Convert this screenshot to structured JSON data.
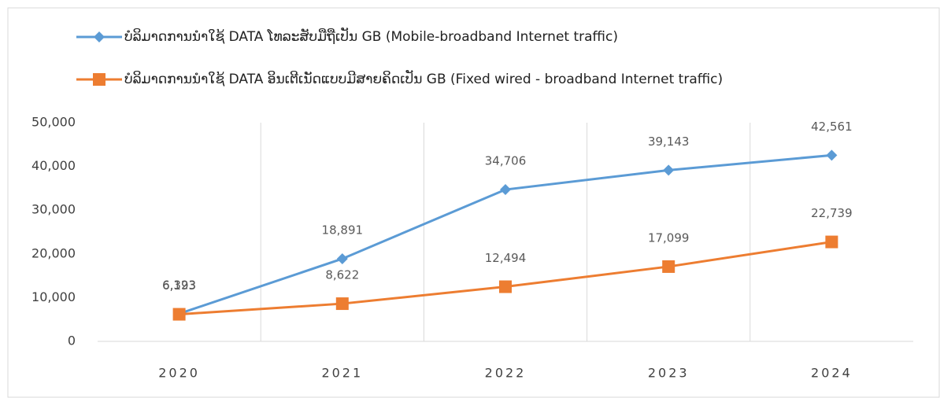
{
  "chart_data": {
    "type": "line",
    "categories": [
      "2020",
      "2021",
      "2022",
      "2023",
      "2024"
    ],
    "series": [
      {
        "name": "ບໍລິມາດການນຳໃຊ້ DATA ໂທລະສັບມືຖືເປັນ GB (Mobile-broadband Internet traffic)",
        "color": "#5b9bd5",
        "marker": "diamond",
        "values": [
          6323,
          18891,
          34706,
          39143,
          42561
        ],
        "value_labels": [
          "6,323",
          "18,891",
          "34,706",
          "39,143",
          "42,561"
        ]
      },
      {
        "name": "ບໍລິມາດການນຳໃຊ້ DATA ອິນເຕີເນັດແບບມີສາຍຄິດເປັນ GB (Fixed wired - broadband Internet traffic)",
        "color": "#ed7d31",
        "marker": "square",
        "values": [
          6193,
          8622,
          12494,
          17099,
          22739
        ],
        "value_labels": [
          "6,193",
          "8,622",
          "12,494",
          "17,099",
          "22,739"
        ]
      }
    ],
    "ylim": [
      0,
      50000
    ],
    "yticks": [
      0,
      {
        "value": 10000,
        "label": "10,000"
      },
      {
        "value": 20000,
        "label": "20,000"
      },
      {
        "value": 30000,
        "label": "30,000"
      },
      {
        "value": 40000,
        "label": "40,000"
      },
      {
        "value": 50000,
        "label": "50,000"
      }
    ],
    "grid": true,
    "legend": "top"
  }
}
